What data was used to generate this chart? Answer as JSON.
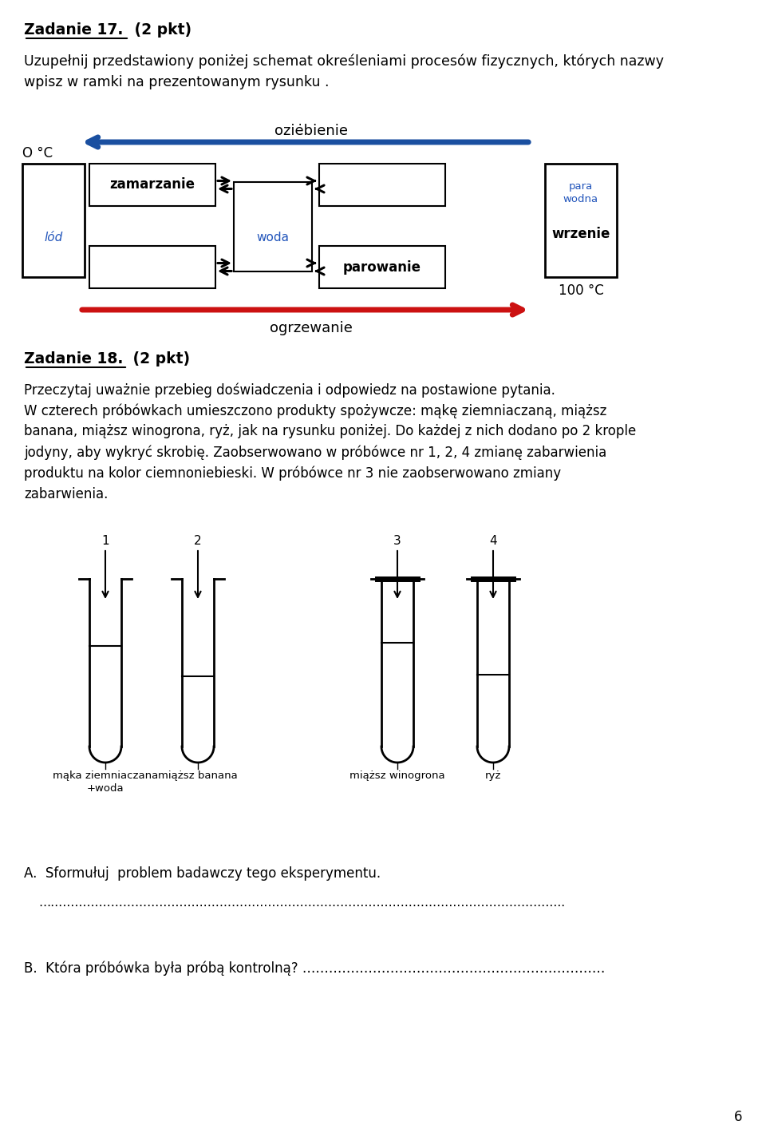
{
  "page_text1": "Uzupełnij przedstawiony poniżej schemat określeniami procesów fizycznych, których nazwy\nwpisz w ramki na prezentowanym rysunku .",
  "diagram_label_top": "oziėbienie",
  "diagram_label_bottom": "ogrzewanie",
  "diagram_box1_text": "zamarzanie",
  "diagram_box4_text": "parowanie",
  "zadanie18_text1": "Przeczytaj uważnie przebieg doświadczenia i odpowiedz na postawione pytania.",
  "zadanie18_text2": "W czterech próbówkach umieszczono produkty spożywcze: mąkę ziemniaczaną, miąższ\nbanana, miąższ winogrona, ryż, jak na rysunku poniżej. Do każdej z nich dodano po 2 krople\njodyny, aby wykryć skrobię. Zaobserwowano w próbówce nr 1, 2, 4 zmianę zabarwienia\nproduktu na kolor ciemnoniebieski. W próbówce nr 3 nie zaobserwowano zmiany\nzabarwienia.",
  "tube_labels": [
    "mąka ziemniaczana\n+woda",
    "miąższ banana",
    "miąższ winogrona",
    "ryż"
  ],
  "tube_numbers": [
    "1",
    "2",
    "3",
    "4"
  ],
  "question_A": "A.  Sformułuj  problem badawczy tego eksperymentu.",
  "question_A_dots": "…………………………………………………………………………………………………………………..",
  "question_B": "B.  Która próbówka była próbą kontrolną? ……………………………………………………………",
  "page_number": "6",
  "bg_color": "#ffffff"
}
